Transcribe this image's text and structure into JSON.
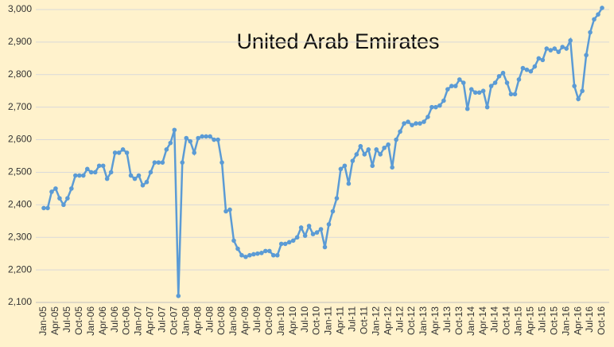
{
  "chart_data": {
    "type": "line",
    "title": "United Arab Emirates",
    "categories": [
      "Jan-05",
      null,
      null,
      "Apr-05",
      null,
      null,
      "Jul-05",
      null,
      null,
      "Oct-05",
      null,
      null,
      "Jan-06",
      null,
      null,
      "Apr-06",
      null,
      null,
      "Jul-06",
      null,
      null,
      "Oct-06",
      null,
      null,
      "Jan-07",
      null,
      null,
      "Apr-07",
      null,
      null,
      "Jul-07",
      null,
      null,
      "Oct-07",
      null,
      null,
      "Jan-08",
      null,
      null,
      "Apr-08",
      null,
      null,
      "Jul-08",
      null,
      null,
      "Oct-08",
      null,
      null,
      "Jan-09",
      null,
      null,
      "Apr-09",
      null,
      null,
      "Jul-09",
      null,
      null,
      "Oct-09",
      null,
      null,
      "Jan-10",
      null,
      null,
      "Apr-10",
      null,
      null,
      "Jul-10",
      null,
      null,
      "Oct-10",
      null,
      null,
      "Jan-11",
      null,
      null,
      "Apr-11",
      null,
      null,
      "Jul-11",
      null,
      null,
      "Oct-11",
      null,
      null,
      "Jan-12",
      null,
      null,
      "Apr-12",
      null,
      null,
      "Jul-12",
      null,
      null,
      "Oct-12",
      null,
      null,
      "Jan-13",
      null,
      null,
      "Apr-13",
      null,
      null,
      "Jul-13",
      null,
      null,
      "Oct-13",
      null,
      null,
      "Jan-14",
      null,
      null,
      "Apr-14",
      null,
      null,
      "Jul-14",
      null,
      null,
      "Oct-14",
      null,
      null,
      "Jan-15",
      null,
      null,
      "Apr-15",
      null,
      null,
      "Jul-15",
      null,
      null,
      "Oct-15",
      null,
      null,
      "Jan-16",
      null,
      null,
      "Apr-16",
      null,
      null,
      "Jul-16",
      null,
      null,
      "Oct-16"
    ],
    "values": [
      2390,
      2390,
      2440,
      2450,
      2420,
      2400,
      2420,
      2450,
      2490,
      2490,
      2490,
      2510,
      2500,
      2500,
      2520,
      2520,
      2480,
      2500,
      2560,
      2560,
      2570,
      2560,
      2490,
      2480,
      2490,
      2460,
      2470,
      2500,
      2530,
      2530,
      2530,
      2570,
      2590,
      2630,
      2120,
      2530,
      2605,
      2595,
      2560,
      2605,
      2610,
      2610,
      2610,
      2600,
      2600,
      2530,
      2380,
      2385,
      2290,
      2265,
      2245,
      2240,
      2245,
      2248,
      2250,
      2252,
      2258,
      2258,
      2245,
      2245,
      2280,
      2280,
      2285,
      2290,
      2300,
      2330,
      2305,
      2335,
      2310,
      2315,
      2325,
      2270,
      2340,
      2380,
      2420,
      2510,
      2520,
      2465,
      2535,
      2555,
      2580,
      2555,
      2570,
      2520,
      2570,
      2555,
      2575,
      2585,
      2515,
      2600,
      2625,
      2650,
      2655,
      2645,
      2650,
      2650,
      2655,
      2670,
      2700,
      2700,
      2705,
      2720,
      2755,
      2765,
      2765,
      2785,
      2775,
      2695,
      2755,
      2745,
      2745,
      2750,
      2700,
      2765,
      2775,
      2795,
      2805,
      2775,
      2740,
      2740,
      2785,
      2820,
      2815,
      2810,
      2825,
      2850,
      2845,
      2880,
      2875,
      2880,
      2870,
      2885,
      2880,
      2905,
      2765,
      2725,
      2750,
      2860,
      2930,
      2970,
      2985,
      3005
    ],
    "color": "#5b9bd5",
    "ylim": [
      2100,
      3000
    ],
    "yticks": [
      {
        "value": 2100,
        "label": "2,100"
      },
      {
        "value": 2200,
        "label": "2,200"
      },
      {
        "value": 2300,
        "label": "2,300"
      },
      {
        "value": 2400,
        "label": "2,400"
      },
      {
        "value": 2500,
        "label": "2,500"
      },
      {
        "value": 2600,
        "label": "2,600"
      },
      {
        "value": 2700,
        "label": "2,700"
      },
      {
        "value": 2800,
        "label": "2,800"
      },
      {
        "value": 2900,
        "label": "2,900"
      },
      {
        "value": 3000,
        "label": "3,000"
      }
    ],
    "grid": true
  }
}
